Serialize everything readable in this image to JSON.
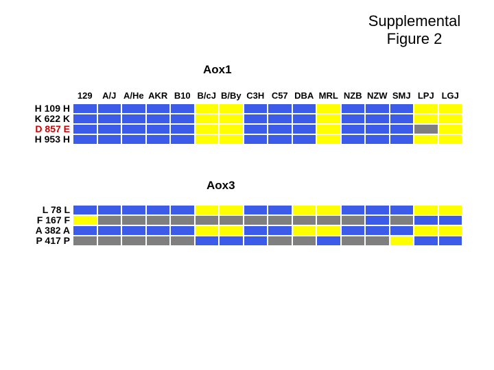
{
  "title": {
    "line1": "Supplemental",
    "line2": "Figure 2"
  },
  "chart_data": {
    "type": "heatmap",
    "description": "Allele/haplotype color map across 16 mouse strains for two genes (Aox1, Aox3)",
    "columns": [
      "129",
      "A/J",
      "A/He",
      "AKR",
      "B10",
      "B/cJ",
      "B/By",
      "C3H",
      "C57",
      "DBA",
      "MRL",
      "NZB",
      "NZW",
      "SMJ",
      "LPJ",
      "LGJ"
    ],
    "color_map": {
      "blue": "#3B5BE8",
      "yellow": "#FFFF00",
      "gray": "#7F7F7F"
    },
    "label_colors": {
      "black": "#000000",
      "red": "#CC0000"
    },
    "panels": [
      {
        "title": "Aox1",
        "rows": [
          {
            "label": "H 109 H",
            "label_color": "black",
            "values": [
              "blue",
              "blue",
              "blue",
              "blue",
              "blue",
              "yellow",
              "yellow",
              "blue",
              "blue",
              "blue",
              "yellow",
              "blue",
              "blue",
              "blue",
              "yellow",
              "yellow"
            ]
          },
          {
            "label": "K 622 K",
            "label_color": "black",
            "values": [
              "blue",
              "blue",
              "blue",
              "blue",
              "blue",
              "yellow",
              "yellow",
              "blue",
              "blue",
              "blue",
              "yellow",
              "blue",
              "blue",
              "blue",
              "yellow",
              "yellow"
            ]
          },
          {
            "label": "D 857 E",
            "label_color": "red",
            "values": [
              "blue",
              "blue",
              "blue",
              "blue",
              "blue",
              "yellow",
              "yellow",
              "blue",
              "blue",
              "blue",
              "yellow",
              "blue",
              "blue",
              "blue",
              "gray",
              "yellow"
            ]
          },
          {
            "label": "H 953 H",
            "label_color": "black",
            "values": [
              "blue",
              "blue",
              "blue",
              "blue",
              "blue",
              "yellow",
              "yellow",
              "blue",
              "blue",
              "blue",
              "yellow",
              "blue",
              "blue",
              "blue",
              "yellow",
              "yellow"
            ]
          }
        ]
      },
      {
        "title": "Aox3",
        "rows": [
          {
            "label": "L  78 L",
            "label_color": "black",
            "values": [
              "blue",
              "blue",
              "blue",
              "blue",
              "blue",
              "yellow",
              "yellow",
              "blue",
              "blue",
              "yellow",
              "yellow",
              "blue",
              "blue",
              "blue",
              "yellow",
              "yellow"
            ]
          },
          {
            "label": "F 167 F",
            "label_color": "black",
            "values": [
              "yellow",
              "gray",
              "gray",
              "gray",
              "gray",
              "gray",
              "gray",
              "gray",
              "gray",
              "gray",
              "gray",
              "gray",
              "blue",
              "gray",
              "blue",
              "blue"
            ]
          },
          {
            "label": "A 382 A",
            "label_color": "black",
            "values": [
              "blue",
              "blue",
              "blue",
              "blue",
              "blue",
              "yellow",
              "yellow",
              "blue",
              "blue",
              "yellow",
              "yellow",
              "blue",
              "blue",
              "blue",
              "yellow",
              "yellow"
            ]
          },
          {
            "label": "P 417 P",
            "label_color": "black",
            "values": [
              "gray",
              "gray",
              "gray",
              "gray",
              "gray",
              "blue",
              "blue",
              "blue",
              "gray",
              "gray",
              "blue",
              "gray",
              "gray",
              "yellow",
              "blue",
              "blue"
            ]
          }
        ]
      }
    ]
  }
}
